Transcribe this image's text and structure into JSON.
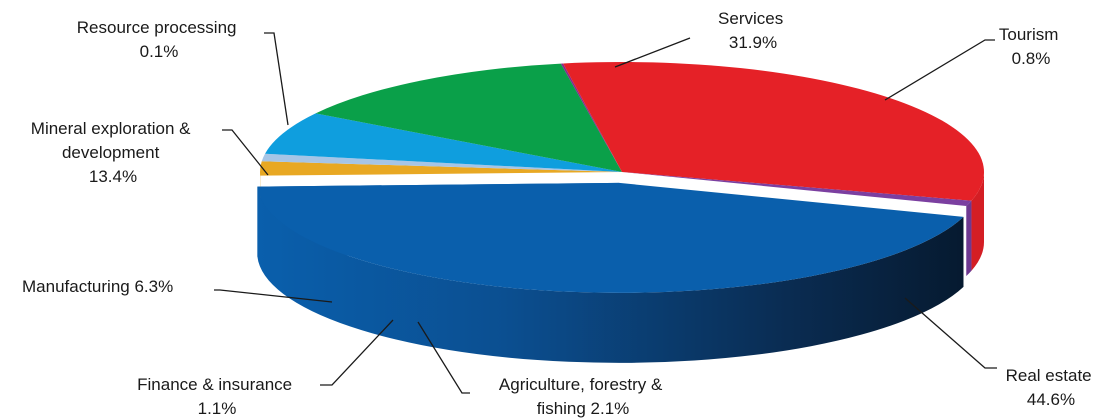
{
  "chart_data": {
    "type": "pie",
    "title": "",
    "style": "3d-exploded-perspective",
    "slices": [
      {
        "label": "Real estate",
        "value": 44.6,
        "value_text": "44.6%",
        "color": "#0a5fac",
        "side_color": "#0a5fac"
      },
      {
        "label": "Agriculture, forestry & fishing",
        "label_lines": [
          "Agriculture, forestry &",
          "fishing 2.1%"
        ],
        "value": 2.1,
        "value_text": "2.1%",
        "color": "#e8a823",
        "side_color": "#d69b1d"
      },
      {
        "label": "Finance & insurance",
        "label_lines": [
          "Finance & insurance",
          "1.1%"
        ],
        "value": 1.1,
        "value_text": "1.1%",
        "color": "#a6c5e6",
        "side_color": "#9bbde2"
      },
      {
        "label": "Manufacturing",
        "label_lines": [
          "Manufacturing 6.3%"
        ],
        "value": 6.3,
        "value_text": "6.3%",
        "color": "#0f9ede",
        "side_color": "#0e99d8"
      },
      {
        "label": "Mineral exploration & development",
        "label_lines": [
          "Mineral exploration &",
          "development",
          "13.4%"
        ],
        "value": 13.4,
        "value_text": "13.4%",
        "color": "#0aa049",
        "side_color": "#0a9845"
      },
      {
        "label": "Resource processing",
        "label_lines": [
          "Resource processing",
          "0.1%"
        ],
        "value": 0.1,
        "value_text": "0.1%",
        "color": "#8a2a8a",
        "side_color": "#7a257a"
      },
      {
        "label": "Services",
        "label_lines": [
          "Services",
          "31.9%"
        ],
        "value": 31.9,
        "value_text": "31.9%",
        "color": "#e52127",
        "side_color": "#d41e24"
      },
      {
        "label": "Tourism",
        "label_lines": [
          "Tourism",
          "0.8%"
        ],
        "value": 0.8,
        "value_text": "0.8%",
        "color": "#7b3fa0",
        "side_color": "#6e3890"
      }
    ]
  }
}
